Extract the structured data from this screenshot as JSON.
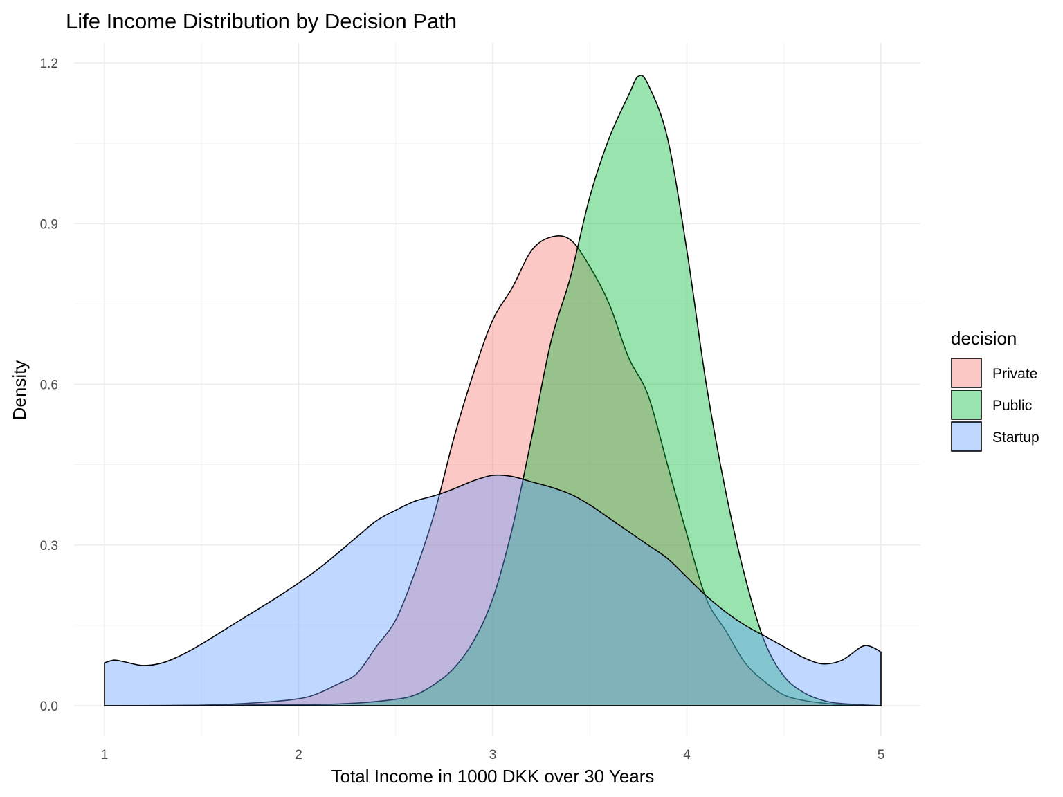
{
  "chart_data": {
    "type": "area",
    "title": "Life Income Distribution by Decision Path",
    "xlabel": "Total Income in 1000 DKK over 30 Years",
    "ylabel": "Density",
    "xlim": [
      1,
      5
    ],
    "ylim": [
      0,
      1.2
    ],
    "x_ticks": [
      "1",
      "2",
      "3",
      "4",
      "5"
    ],
    "y_ticks": [
      "0.0",
      "0.3",
      "0.6",
      "0.9",
      "1.2"
    ],
    "grid": true,
    "legend": {
      "title": "decision",
      "position": "right",
      "entries": [
        {
          "label": "Private",
          "color": "#F8766D"
        },
        {
          "label": "Public",
          "color": "#00BA38"
        },
        {
          "label": "Startup",
          "color": "#619CFF"
        }
      ]
    },
    "fill_alpha": 0.4,
    "series": [
      {
        "name": "Private",
        "color": "#F8766D",
        "x": [
          1.0,
          1.5,
          1.8,
          2.0,
          2.1,
          2.2,
          2.3,
          2.4,
          2.5,
          2.6,
          2.7,
          2.8,
          2.9,
          3.0,
          3.1,
          3.2,
          3.3,
          3.4,
          3.5,
          3.6,
          3.7,
          3.8,
          3.9,
          4.0,
          4.1,
          4.2,
          4.3,
          4.4,
          4.5,
          4.6,
          4.7,
          4.8,
          5.0
        ],
        "y": [
          0.0,
          0.001,
          0.006,
          0.013,
          0.023,
          0.04,
          0.06,
          0.11,
          0.16,
          0.25,
          0.36,
          0.5,
          0.62,
          0.72,
          0.78,
          0.85,
          0.875,
          0.87,
          0.82,
          0.75,
          0.65,
          0.58,
          0.45,
          0.32,
          0.2,
          0.14,
          0.08,
          0.045,
          0.02,
          0.01,
          0.005,
          0.002,
          0.0
        ]
      },
      {
        "name": "Public",
        "color": "#00BA38",
        "x": [
          1.0,
          2.0,
          2.3,
          2.5,
          2.6,
          2.7,
          2.8,
          2.9,
          3.0,
          3.1,
          3.2,
          3.3,
          3.4,
          3.5,
          3.6,
          3.7,
          3.75,
          3.8,
          3.9,
          4.0,
          4.1,
          4.2,
          4.3,
          4.4,
          4.5,
          4.6,
          4.7,
          4.8,
          5.0
        ],
        "y": [
          0.0,
          0.002,
          0.005,
          0.012,
          0.02,
          0.04,
          0.07,
          0.12,
          0.2,
          0.33,
          0.5,
          0.68,
          0.8,
          0.95,
          1.06,
          1.14,
          1.175,
          1.16,
          1.06,
          0.85,
          0.6,
          0.4,
          0.24,
          0.12,
          0.055,
          0.025,
          0.01,
          0.004,
          0.0
        ]
      },
      {
        "name": "Startup",
        "color": "#619CFF",
        "x": [
          1.0,
          1.05,
          1.1,
          1.2,
          1.3,
          1.4,
          1.5,
          1.7,
          1.9,
          2.1,
          2.3,
          2.4,
          2.5,
          2.6,
          2.7,
          2.8,
          2.9,
          3.0,
          3.1,
          3.2,
          3.3,
          3.4,
          3.5,
          3.6,
          3.7,
          3.8,
          3.9,
          4.0,
          4.1,
          4.2,
          4.3,
          4.4,
          4.5,
          4.6,
          4.7,
          4.8,
          4.9,
          4.95,
          5.0
        ],
        "y": [
          0.08,
          0.085,
          0.082,
          0.075,
          0.08,
          0.095,
          0.115,
          0.16,
          0.205,
          0.255,
          0.315,
          0.345,
          0.365,
          0.382,
          0.392,
          0.405,
          0.42,
          0.43,
          0.428,
          0.418,
          0.408,
          0.395,
          0.375,
          0.35,
          0.325,
          0.3,
          0.275,
          0.24,
          0.205,
          0.175,
          0.15,
          0.13,
          0.11,
          0.09,
          0.078,
          0.085,
          0.11,
          0.11,
          0.1
        ]
      }
    ]
  }
}
